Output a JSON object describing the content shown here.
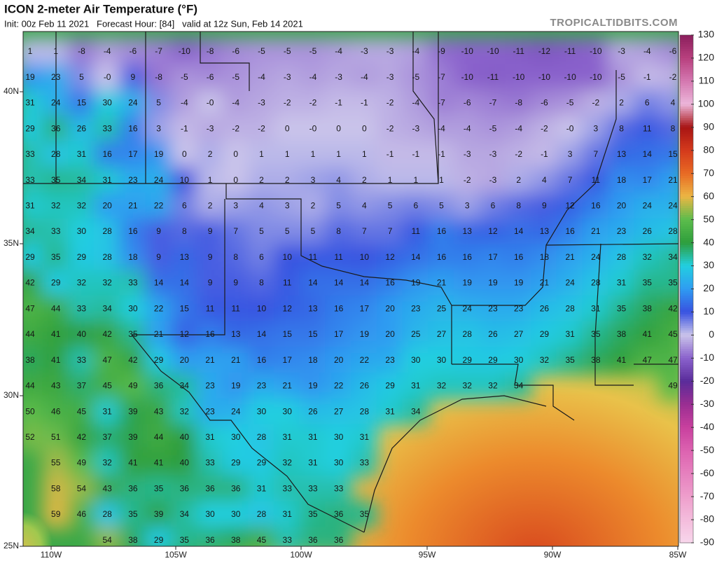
{
  "header": {
    "title": "ICON 2-meter Air Temperature (°F)",
    "subtitle": "Init: 00z Feb 11 2021   Forecast Hour: [84]   valid at 12z Sun, Feb 14 2021",
    "brand": "TROPICALTIDBITS.COM"
  },
  "map": {
    "lat_labels": [
      "40N",
      "35N",
      "30N",
      "25N"
    ],
    "lon_labels": [
      "110W",
      "105W",
      "100W",
      "95W",
      "90W",
      "85W"
    ],
    "stations": [
      [
        1,
        1,
        -8,
        -4,
        -6,
        -7,
        -10,
        -8,
        -6,
        -5,
        -5,
        -5,
        -4,
        -3,
        -3,
        -4,
        -9,
        -10,
        -10,
        -11,
        -12,
        -11,
        -10,
        -3,
        -4,
        -6
      ],
      [
        19,
        23,
        5,
        {
          "value": 0,
          "label": "-0"
        },
        9,
        -8,
        -5,
        -6,
        -5,
        -4,
        -3,
        -4,
        -3,
        -4,
        -3,
        -5,
        -7,
        -10,
        -11,
        -10,
        -10,
        -10,
        -10,
        -5,
        -1,
        -2
      ],
      [
        31,
        24,
        15,
        30,
        24,
        5,
        -4,
        {
          "value": 0,
          "label": "-0"
        },
        -4,
        -3,
        -2,
        -2,
        -1,
        -1,
        -2,
        -4,
        -7,
        -6,
        -7,
        -8,
        -6,
        -5,
        -2,
        2,
        6,
        4
      ],
      [
        29,
        36,
        26,
        33,
        16,
        3,
        -1,
        -3,
        -2,
        -2,
        0,
        {
          "value": 0,
          "label": "-0"
        },
        0,
        0,
        -2,
        -3,
        -4,
        -4,
        -5,
        -4,
        -2,
        {
          "value": 0,
          "label": "-0"
        },
        3,
        8,
        11,
        8
      ],
      [
        33,
        28,
        31,
        16,
        17,
        19,
        0,
        2,
        0,
        1,
        1,
        1,
        1,
        1,
        -1,
        -1,
        -1,
        -3,
        -3,
        -2,
        -1,
        3,
        7,
        13,
        14,
        15
      ],
      [
        33,
        35,
        34,
        31,
        23,
        24,
        10,
        1,
        0,
        2,
        2,
        3,
        4,
        2,
        1,
        1,
        1,
        -2,
        -3,
        2,
        4,
        7,
        11,
        18,
        17,
        21
      ],
      [
        31,
        32,
        32,
        20,
        21,
        22,
        6,
        2,
        3,
        4,
        3,
        2,
        5,
        4,
        5,
        6,
        5,
        3,
        6,
        8,
        9,
        12,
        16,
        20,
        24,
        24
      ],
      [
        34,
        33,
        30,
        28,
        16,
        9,
        8,
        9,
        7,
        5,
        5,
        5,
        8,
        7,
        7,
        11,
        16,
        13,
        12,
        14,
        13,
        16,
        21,
        23,
        26,
        28
      ],
      [
        29,
        35,
        29,
        28,
        18,
        9,
        13,
        9,
        8,
        6,
        10,
        11,
        11,
        10,
        12,
        14,
        16,
        16,
        17,
        16,
        18,
        21,
        24,
        28,
        32,
        34
      ],
      [
        42,
        29,
        32,
        32,
        33,
        14,
        14,
        9,
        9,
        8,
        11,
        14,
        14,
        14,
        16,
        19,
        21,
        19,
        19,
        19,
        21,
        24,
        28,
        31,
        35,
        35
      ],
      [
        47,
        44,
        33,
        34,
        30,
        22,
        15,
        11,
        11,
        10,
        12,
        13,
        16,
        17,
        20,
        23,
        25,
        24,
        23,
        23,
        26,
        28,
        31,
        35,
        38,
        42
      ],
      [
        44,
        41,
        40,
        42,
        35,
        21,
        12,
        16,
        13,
        14,
        15,
        15,
        17,
        19,
        20,
        25,
        27,
        28,
        26,
        27,
        29,
        31,
        35,
        38,
        41,
        45
      ],
      [
        38,
        41,
        33,
        47,
        42,
        29,
        20,
        21,
        21,
        16,
        17,
        18,
        20,
        22,
        23,
        30,
        30,
        29,
        29,
        30,
        32,
        35,
        38,
        41,
        47,
        47
      ],
      [
        44,
        43,
        37,
        45,
        49,
        36,
        34,
        23,
        19,
        23,
        21,
        19,
        22,
        26,
        29,
        31,
        32,
        32,
        32,
        34,
        null,
        null,
        null,
        null,
        null,
        49
      ],
      [
        50,
        46,
        45,
        31,
        39,
        43,
        32,
        23,
        24,
        30,
        30,
        26,
        27,
        28,
        31,
        34,
        null,
        null,
        null,
        null,
        null,
        null,
        null,
        null,
        null,
        null
      ],
      [
        52,
        51,
        42,
        37,
        39,
        44,
        40,
        31,
        30,
        28,
        31,
        31,
        30,
        31,
        null,
        null,
        null,
        null,
        null,
        null,
        null,
        null,
        null,
        null,
        null,
        null
      ],
      [
        null,
        55,
        49,
        32,
        41,
        41,
        40,
        33,
        29,
        29,
        32,
        31,
        30,
        33,
        null,
        null,
        null,
        null,
        null,
        null,
        null,
        null,
        null,
        null,
        null,
        null
      ],
      [
        null,
        58,
        54,
        43,
        36,
        35,
        36,
        36,
        36,
        31,
        33,
        33,
        33,
        null,
        null,
        null,
        null,
        null,
        null,
        null,
        null,
        null,
        null,
        null,
        null,
        null
      ],
      [
        null,
        59,
        46,
        28,
        35,
        39,
        34,
        30,
        30,
        28,
        31,
        35,
        36,
        35,
        null,
        null,
        null,
        null,
        null,
        null,
        null,
        null,
        null,
        null,
        null,
        null
      ],
      [
        null,
        null,
        null,
        54,
        38,
        29,
        35,
        36,
        38,
        45,
        33,
        36,
        36,
        null,
        null,
        null,
        null,
        null,
        null,
        null,
        null,
        null,
        null,
        null,
        null,
        null
      ]
    ]
  },
  "colorbar": {
    "ticks": [
      130,
      120,
      110,
      100,
      90,
      80,
      70,
      60,
      50,
      40,
      30,
      20,
      10,
      0,
      -10,
      -20,
      -30,
      -40,
      -50,
      -60,
      -70,
      -80,
      -90
    ],
    "colors": [
      "#8a1e5c",
      "#b8407e",
      "#d478b0",
      "#ecb6da",
      "#a81414",
      "#d43a1c",
      "#e86a24",
      "#ecb644",
      "#5cbc4c",
      "#2e9e3c",
      "#22cfe0",
      "#2f9cf2",
      "#3852e0",
      "#cac4ea",
      "#8a62cc",
      "#5a2c9a",
      "#9a2e92",
      "#c8409e",
      "#dc62b0",
      "#e680be",
      "#ee9ecc",
      "#f4bcdc",
      "#f8d6ec"
    ]
  }
}
